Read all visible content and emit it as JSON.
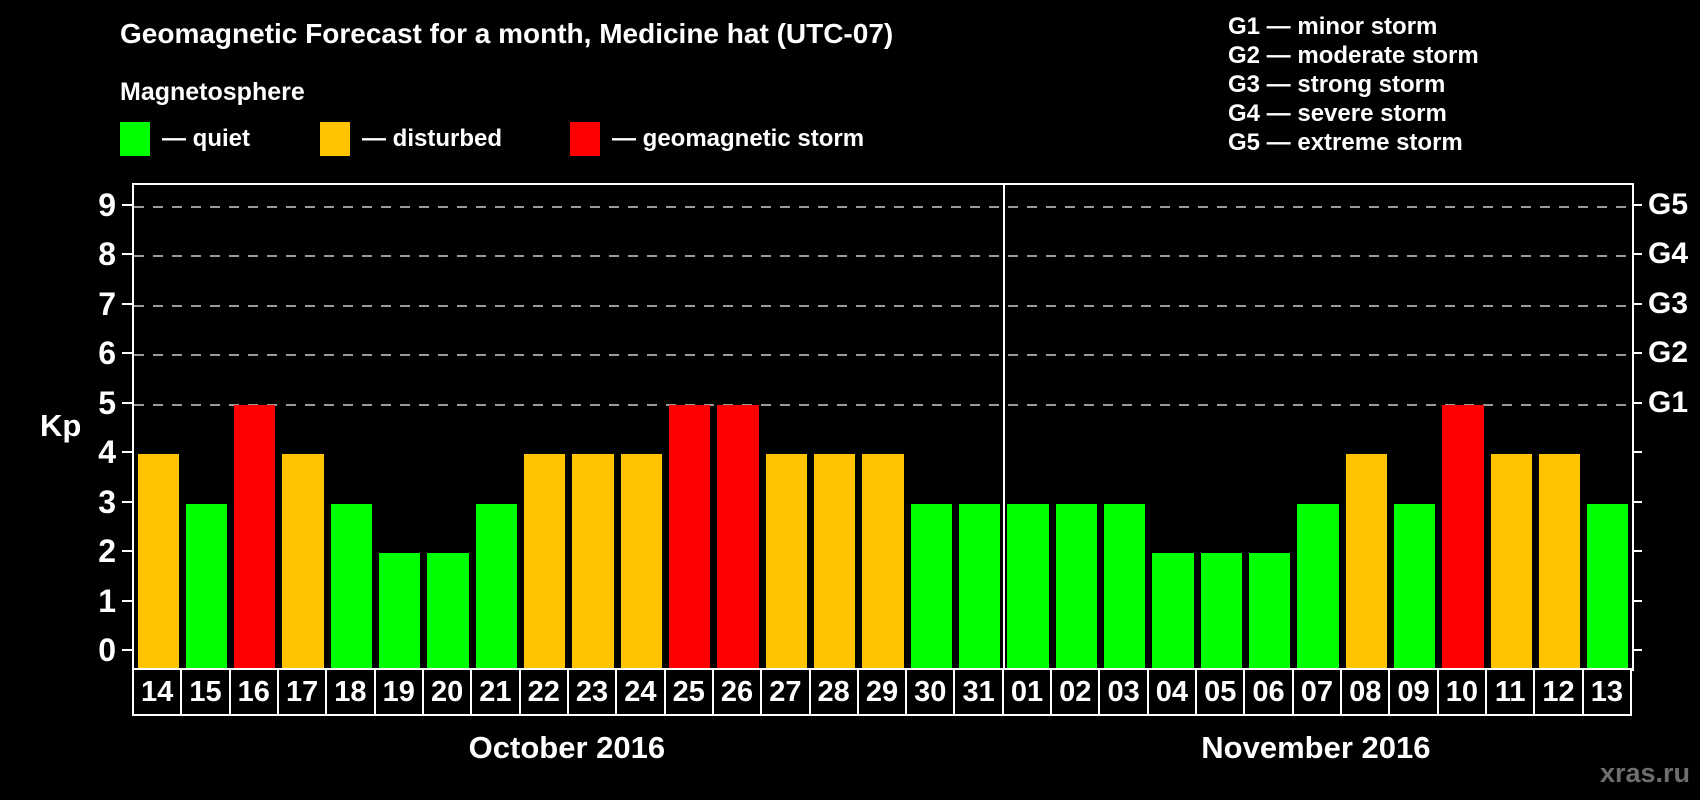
{
  "header": {
    "title": "Geomagnetic Forecast for a month, Medicine hat (UTC-07)",
    "subtitle": "Magnetosphere",
    "legend": [
      {
        "name": "quiet",
        "status": "quiet",
        "label": "— quiet"
      },
      {
        "name": "disturbed",
        "status": "disturbed",
        "label": "— disturbed"
      },
      {
        "name": "storm",
        "status": "storm",
        "label": "— geomagnetic storm"
      }
    ],
    "g_scale_legend": [
      "G1 — minor storm",
      "G2 — moderate storm",
      "G3 — strong storm",
      "G4 — severe storm",
      "G5 — extreme storm"
    ]
  },
  "chart_data": {
    "type": "bar",
    "ylabel": "Kp",
    "ylim": [
      0,
      9
    ],
    "y_ticks": [
      0,
      1,
      2,
      3,
      4,
      5,
      6,
      7,
      8,
      9
    ],
    "grid_levels": [
      5,
      6,
      7,
      8,
      9
    ],
    "right_axis_labels": [
      {
        "label": "G1",
        "kp": 5
      },
      {
        "label": "G2",
        "kp": 6
      },
      {
        "label": "G3",
        "kp": 7
      },
      {
        "label": "G4",
        "kp": 8
      },
      {
        "label": "G5",
        "kp": 9
      }
    ],
    "legend_position": "top-left",
    "grid": "dashed horizontal at G levels only",
    "months": [
      {
        "label": "October 2016",
        "days": [
          {
            "day": "14",
            "kp": 4,
            "status": "disturbed"
          },
          {
            "day": "15",
            "kp": 3,
            "status": "quiet"
          },
          {
            "day": "16",
            "kp": 5,
            "status": "storm"
          },
          {
            "day": "17",
            "kp": 4,
            "status": "disturbed"
          },
          {
            "day": "18",
            "kp": 3,
            "status": "quiet"
          },
          {
            "day": "19",
            "kp": 2,
            "status": "quiet"
          },
          {
            "day": "20",
            "kp": 2,
            "status": "quiet"
          },
          {
            "day": "21",
            "kp": 3,
            "status": "quiet"
          },
          {
            "day": "22",
            "kp": 4,
            "status": "disturbed"
          },
          {
            "day": "23",
            "kp": 4,
            "status": "disturbed"
          },
          {
            "day": "24",
            "kp": 4,
            "status": "disturbed"
          },
          {
            "day": "25",
            "kp": 5,
            "status": "storm"
          },
          {
            "day": "26",
            "kp": 5,
            "status": "storm"
          },
          {
            "day": "27",
            "kp": 4,
            "status": "disturbed"
          },
          {
            "day": "28",
            "kp": 4,
            "status": "disturbed"
          },
          {
            "day": "29",
            "kp": 4,
            "status": "disturbed"
          },
          {
            "day": "30",
            "kp": 3,
            "status": "quiet"
          },
          {
            "day": "31",
            "kp": 3,
            "status": "quiet"
          }
        ]
      },
      {
        "label": "November 2016",
        "days": [
          {
            "day": "01",
            "kp": 3,
            "status": "quiet"
          },
          {
            "day": "02",
            "kp": 3,
            "status": "quiet"
          },
          {
            "day": "03",
            "kp": 3,
            "status": "quiet"
          },
          {
            "day": "04",
            "kp": 2,
            "status": "quiet"
          },
          {
            "day": "05",
            "kp": 2,
            "status": "quiet"
          },
          {
            "day": "06",
            "kp": 2,
            "status": "quiet"
          },
          {
            "day": "07",
            "kp": 3,
            "status": "quiet"
          },
          {
            "day": "08",
            "kp": 4,
            "status": "disturbed"
          },
          {
            "day": "09",
            "kp": 3,
            "status": "quiet"
          },
          {
            "day": "10",
            "kp": 5,
            "status": "storm"
          },
          {
            "day": "11",
            "kp": 4,
            "status": "disturbed"
          },
          {
            "day": "12",
            "kp": 4,
            "status": "disturbed"
          },
          {
            "day": "13",
            "kp": 3,
            "status": "quiet"
          }
        ]
      }
    ]
  },
  "colors": {
    "quiet": "#00ff00",
    "disturbed": "#ffc300",
    "storm": "#ff0000",
    "grid": "#9a9a9a",
    "axis": "#ffffff",
    "background": "#000000",
    "watermark": "#6e6e6e"
  },
  "watermark": "xras.ru"
}
